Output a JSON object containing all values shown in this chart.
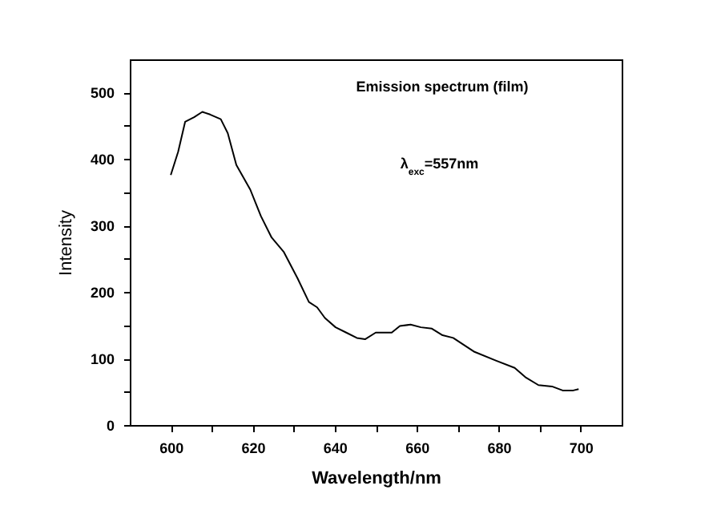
{
  "chart_data": {
    "type": "line",
    "xlabel": "Wavelength/nm",
    "ylabel": "Intensity",
    "annotations": [
      "Emission spectrum (film)",
      "λ$_{exc}$=557nm"
    ],
    "x": [
      600,
      601.8,
      603.5,
      605.7,
      607.7,
      609.6,
      612.2,
      613.9,
      616,
      619.4,
      622,
      624.6,
      627.6,
      630.9,
      633.7,
      635.7,
      637.6,
      640.2,
      642.8,
      645.4,
      647.4,
      650,
      653.9,
      655.9,
      658.5,
      661,
      663.7,
      666.3,
      668.9,
      674.1,
      679.3,
      683.9,
      686.5,
      689.7,
      693,
      695.6,
      698.2,
      699.5
    ],
    "series": [
      {
        "color": "#000000",
        "values": [
          376,
          411,
          456,
          463,
          471,
          467,
          460,
          439,
          391,
          354,
          314,
          282,
          260,
          221,
          185,
          177,
          161,
          147,
          139,
          131,
          129,
          139,
          139,
          149,
          151,
          147,
          145,
          135,
          131,
          110,
          97,
          86,
          72,
          60,
          58,
          52,
          52,
          54
        ]
      }
    ],
    "xlim": [
      590,
      710
    ],
    "xticks": [
      600,
      {
        "value": 610,
        "label": null
      },
      620,
      {
        "value": 630,
        "label": null
      },
      640,
      {
        "value": 650,
        "label": null
      },
      660,
      {
        "value": 670,
        "label": null
      },
      680,
      {
        "value": 690,
        "label": null
      },
      700
    ],
    "ylim": [
      0,
      550
    ],
    "yticks": [
      0,
      {
        "value": 50,
        "label": null
      },
      100,
      {
        "value": 150,
        "label": null
      },
      200,
      {
        "value": 250,
        "label": null
      },
      300,
      {
        "value": 350,
        "label": null
      },
      400,
      {
        "value": 450,
        "label": null
      },
      500
    ],
    "grid": false,
    "marker": "none",
    "line_style": "solid"
  }
}
